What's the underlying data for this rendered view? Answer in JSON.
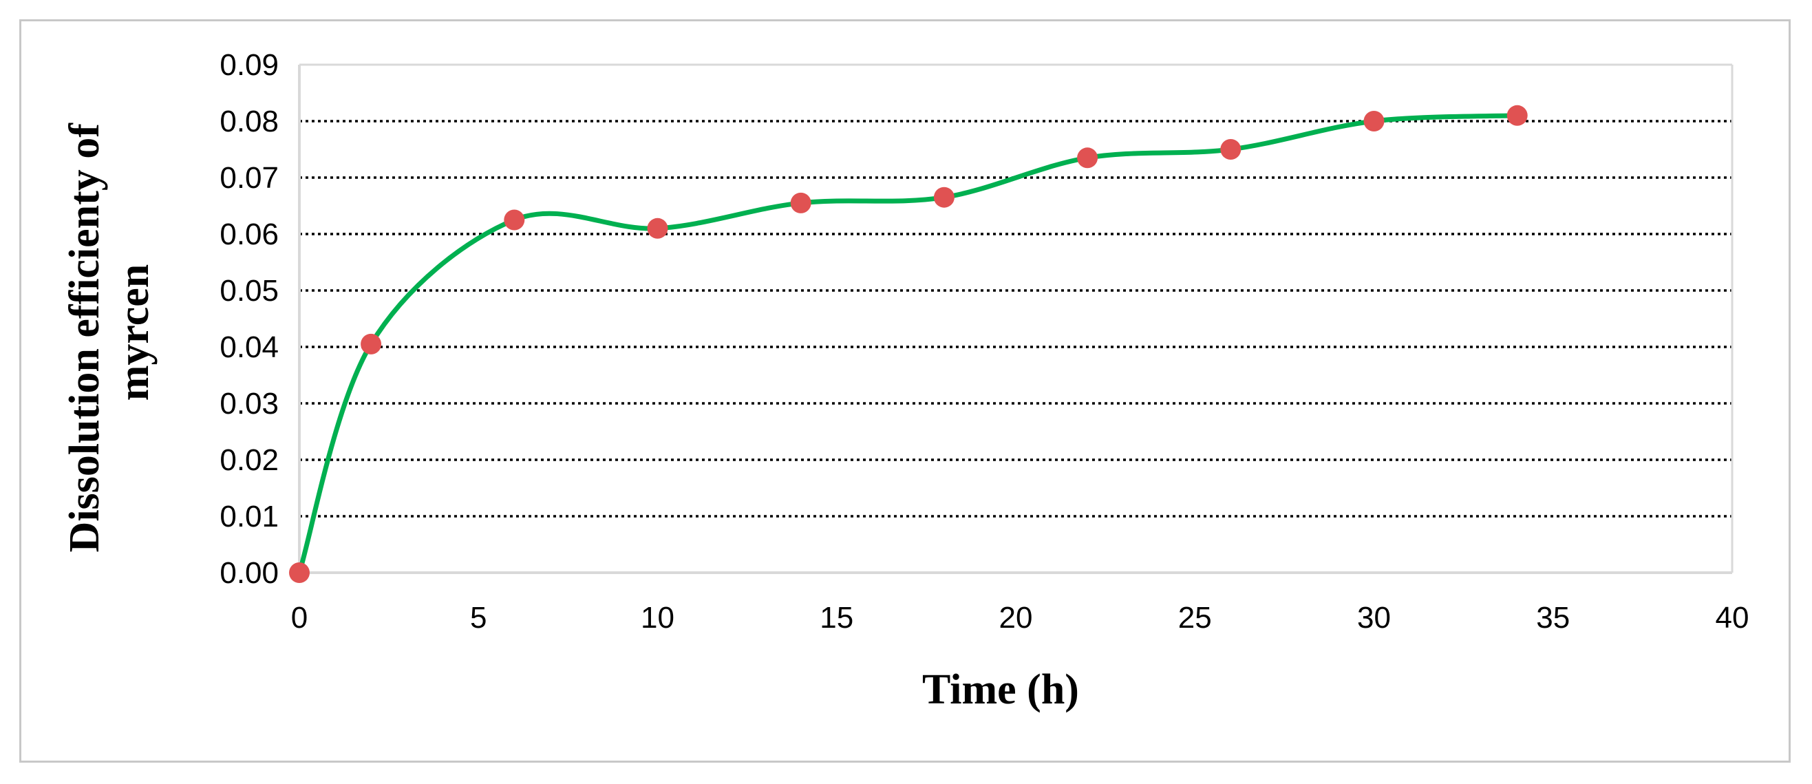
{
  "chart_data": {
    "type": "line",
    "title": "",
    "xlabel": "Time (h)",
    "ylabel_lines": [
      "Dissolution efficienty of",
      "myrcen"
    ],
    "xlim": [
      0,
      40
    ],
    "ylim": [
      0,
      0.09
    ],
    "x_ticks": [
      0,
      5,
      10,
      15,
      20,
      25,
      30,
      35,
      40
    ],
    "x_tick_labels": [
      "0",
      "5",
      "10",
      "15",
      "20",
      "25",
      "30",
      "35",
      "40"
    ],
    "y_ticks": [
      0,
      0.01,
      0.02,
      0.03,
      0.04,
      0.05,
      0.06,
      0.07,
      0.08,
      0.09
    ],
    "y_tick_labels": [
      "0.00",
      "0.01",
      "0.02",
      "0.03",
      "0.04",
      "0.05",
      "0.06",
      "0.07",
      "0.08",
      "0.09"
    ],
    "grid": "horizontal dotted",
    "smooth_line": true,
    "line_color": "#00b050",
    "marker_color": "#e05252",
    "series": [
      {
        "x": [
          0,
          2,
          6,
          10,
          14,
          18,
          22,
          26,
          30,
          34
        ],
        "y": [
          0.0,
          0.0405,
          0.0625,
          0.061,
          0.0655,
          0.0665,
          0.0735,
          0.075,
          0.08,
          0.081
        ]
      }
    ]
  }
}
